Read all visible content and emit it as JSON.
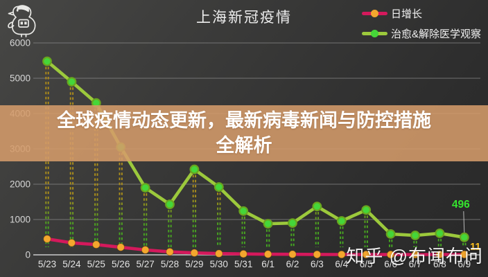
{
  "header": {
    "title": "上海新冠疫情",
    "logo_icon": "bird-doodle-icon"
  },
  "legend": {
    "items": [
      {
        "label": "日增长",
        "line_color": "#d4195c",
        "dot_color": "#f3a72e"
      },
      {
        "label": "治愈&解除医学观察",
        "line_color": "#9cc93c",
        "dot_color": "#45d639"
      }
    ]
  },
  "banner": {
    "line1": "全球疫情动态更新，最新病毒新闻与防控措施",
    "line2": "全解析",
    "bg_color": "#c28d62"
  },
  "watermark": {
    "text": "知乎 @布闻布问"
  },
  "chart_data": {
    "type": "line",
    "title": "上海新冠疫情",
    "categories": [
      "5/23",
      "5/24",
      "5/25",
      "5/26",
      "5/27",
      "5/28",
      "5/29",
      "5/30",
      "5/31",
      "6/1",
      "6/2",
      "6/3",
      "6/4",
      "6/5",
      "6/6",
      "6/7",
      "6/8",
      "6/9"
    ],
    "series": [
      {
        "name": "日增长",
        "color": "#d4195c",
        "marker_color": "#f3a72e",
        "values": [
          450,
          340,
          290,
          215,
          140,
          85,
          55,
          35,
          25,
          18,
          15,
          12,
          10,
          9,
          8,
          9,
          10,
          11
        ]
      },
      {
        "name": "治愈&解除医学观察",
        "color": "#9cc93c",
        "marker_color": "#45d639",
        "values": [
          5480,
          4900,
          4300,
          3050,
          1900,
          1430,
          2420,
          1920,
          1240,
          880,
          900,
          1370,
          960,
          1270,
          590,
          550,
          610,
          496
        ]
      }
    ],
    "ylim": [
      0,
      6000
    ],
    "yticks": [
      0,
      1000,
      2000,
      3000,
      4000,
      5000,
      6000
    ],
    "grid": true,
    "legend_position": "top-right",
    "annotations": [
      {
        "series": "治愈&解除医学观察",
        "category": "6/9",
        "label": "496",
        "color": "#35e52e"
      },
      {
        "series": "日增长",
        "category": "6/9",
        "label": "11",
        "color": "#ffc21e"
      }
    ]
  }
}
